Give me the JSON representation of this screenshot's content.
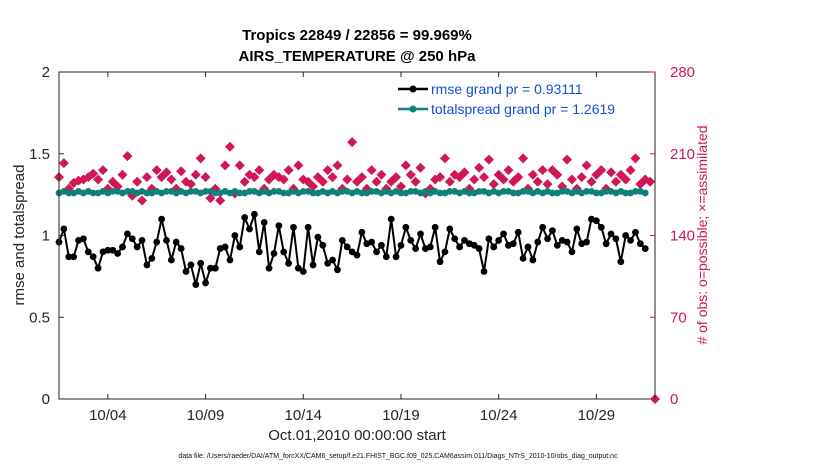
{
  "chart_data": {
    "type": "line",
    "title_line1": "Tropics 22849 / 22856 = 99.969%",
    "title_line2": "AIRS_TEMPERATURE @ 250 hPa",
    "xlabel": "Oct.01,2010 00:00:00 start",
    "ylabel_left": "rmse and totalspread",
    "ylabel_right": "# of obs: o=possible; ×=assimilated",
    "xlim": [
      1.5,
      32
    ],
    "ylim_left": [
      0,
      2
    ],
    "ylim_right": [
      0,
      280
    ],
    "x_ticks": [
      {
        "value": 4,
        "label": "10/04"
      },
      {
        "value": 9,
        "label": "10/09"
      },
      {
        "value": 14,
        "label": "10/14"
      },
      {
        "value": 19,
        "label": "10/19"
      },
      {
        "value": 24,
        "label": "10/24"
      },
      {
        "value": 29,
        "label": "10/29"
      }
    ],
    "y_ticks_left": [
      {
        "value": 0,
        "label": "0"
      },
      {
        "value": 0.5,
        "label": "0.5"
      },
      {
        "value": 1,
        "label": "1"
      },
      {
        "value": 1.5,
        "label": "1.5"
      },
      {
        "value": 2,
        "label": "2"
      }
    ],
    "y_ticks_right": [
      {
        "value": 0,
        "label": "0"
      },
      {
        "value": 70,
        "label": "70"
      },
      {
        "value": 140,
        "label": "140"
      },
      {
        "value": 210,
        "label": "210"
      },
      {
        "value": 280,
        "label": "280"
      }
    ],
    "series": [
      {
        "name": "rmse",
        "legend": "rmse grand pr = 0.93111",
        "color": "#000000",
        "start": 1.5,
        "step": 0.25,
        "values": [
          0.96,
          1.04,
          0.87,
          0.87,
          0.97,
          0.98,
          0.9,
          0.87,
          0.8,
          0.9,
          0.91,
          0.91,
          0.89,
          0.93,
          1.01,
          0.98,
          0.93,
          0.97,
          0.82,
          0.86,
          0.96,
          1.1,
          0.97,
          0.85,
          0.96,
          0.92,
          0.78,
          0.82,
          0.7,
          0.83,
          0.71,
          0.8,
          0.8,
          0.92,
          0.93,
          0.85,
          1.0,
          0.93,
          1.11,
          1.04,
          1.13,
          0.9,
          1.08,
          0.8,
          0.89,
          1.06,
          0.9,
          0.83,
          1.05,
          0.8,
          0.78,
          1.05,
          0.82,
          0.99,
          0.94,
          0.83,
          0.85,
          0.79,
          0.97,
          0.93,
          0.9,
          0.88,
          1.02,
          0.95,
          0.96,
          0.9,
          0.94,
          0.87,
          1.1,
          0.87,
          0.94,
          1.05,
          0.97,
          0.92,
          1.01,
          0.92,
          0.93,
          1.05,
          0.84,
          0.9,
          1.04,
          0.98,
          0.93,
          0.97,
          0.95,
          0.94,
          0.92,
          0.78,
          0.98,
          0.93,
          0.97,
          1.01,
          0.94,
          0.95,
          1.02,
          0.86,
          0.93,
          0.85,
          0.96,
          1.05,
          0.98,
          1.03,
          0.94,
          0.97,
          0.96,
          0.9,
          1.04,
          0.95,
          0.96,
          1.1,
          1.09,
          1.05,
          0.95,
          1.01,
          0.98,
          0.84,
          1.0,
          0.97,
          1.02,
          0.95,
          0.92
        ]
      },
      {
        "name": "totalspread",
        "legend": "totalspread grand pr = 1.2619",
        "color": "#0e7f7a",
        "start": 1.5,
        "step": 0.25,
        "values": [
          1.26,
          1.27,
          1.26,
          1.26,
          1.27,
          1.26,
          1.27,
          1.26,
          1.26,
          1.27,
          1.26,
          1.27,
          1.27,
          1.26,
          1.27,
          1.27,
          1.26,
          1.27,
          1.26,
          1.26,
          1.27,
          1.26,
          1.27,
          1.27,
          1.26,
          1.27,
          1.26,
          1.27,
          1.27,
          1.26,
          1.27,
          1.27,
          1.26,
          1.26,
          1.27,
          1.26,
          1.27,
          1.26,
          1.26,
          1.27,
          1.27,
          1.26,
          1.27,
          1.26,
          1.27,
          1.27,
          1.26,
          1.26,
          1.27,
          1.26,
          1.27,
          1.27,
          1.26,
          1.26,
          1.27,
          1.26,
          1.27,
          1.26,
          1.27,
          1.27,
          1.26,
          1.27,
          1.26,
          1.26,
          1.27,
          1.27,
          1.26,
          1.27,
          1.26,
          1.27,
          1.26,
          1.26,
          1.27,
          1.27,
          1.26,
          1.27,
          1.26,
          1.27,
          1.26,
          1.26,
          1.27,
          1.27,
          1.26,
          1.27,
          1.26,
          1.26,
          1.27,
          1.27,
          1.26,
          1.27,
          1.26,
          1.27,
          1.27,
          1.26,
          1.26,
          1.27,
          1.27,
          1.26,
          1.27,
          1.26,
          1.27,
          1.26,
          1.26,
          1.27,
          1.27,
          1.26,
          1.27,
          1.26,
          1.27,
          1.27,
          1.26,
          1.26,
          1.27,
          1.27,
          1.26,
          1.27,
          1.26,
          1.26,
          1.27,
          1.27,
          1.26
        ]
      }
    ],
    "obs_counts": {
      "color": "#d01757",
      "start": 1.5,
      "step": 0.25,
      "values": [
        190,
        202,
        180,
        185,
        187,
        188,
        190,
        193,
        188,
        196,
        180,
        186,
        182,
        192,
        208,
        174,
        186,
        170,
        190,
        180,
        196,
        190,
        194,
        188,
        180,
        195,
        186,
        184,
        192,
        206,
        190,
        172,
        180,
        170,
        200,
        216,
        176,
        200,
        186,
        192,
        190,
        196,
        180,
        188,
        192,
        190,
        188,
        196,
        180,
        200,
        188,
        186,
        182,
        190,
        186,
        196,
        190,
        200,
        180,
        188,
        220,
        186,
        190,
        180,
        196,
        186,
        192,
        180,
        186,
        190,
        182,
        200,
        192,
        186,
        198,
        176,
        180,
        188,
        190,
        206,
        186,
        192,
        190,
        194,
        180,
        188,
        198,
        190,
        205,
        184,
        192,
        188,
        196,
        186,
        190,
        206,
        180,
        192,
        186,
        196,
        184,
        196,
        192,
        182,
        205,
        188,
        180,
        190,
        200,
        186,
        192,
        196,
        180,
        194,
        186,
        192,
        188,
        196,
        206,
        184,
        188,
        186,
        0
      ]
    },
    "footer": "data file: /Users/raeder/DAI/ATM_forcXX/CAM6_setup/f.e21.FHIST_BGC.f09_025.CAM6assim.011/Diags_NTrS_2010-10/obs_diag_output.nc"
  }
}
